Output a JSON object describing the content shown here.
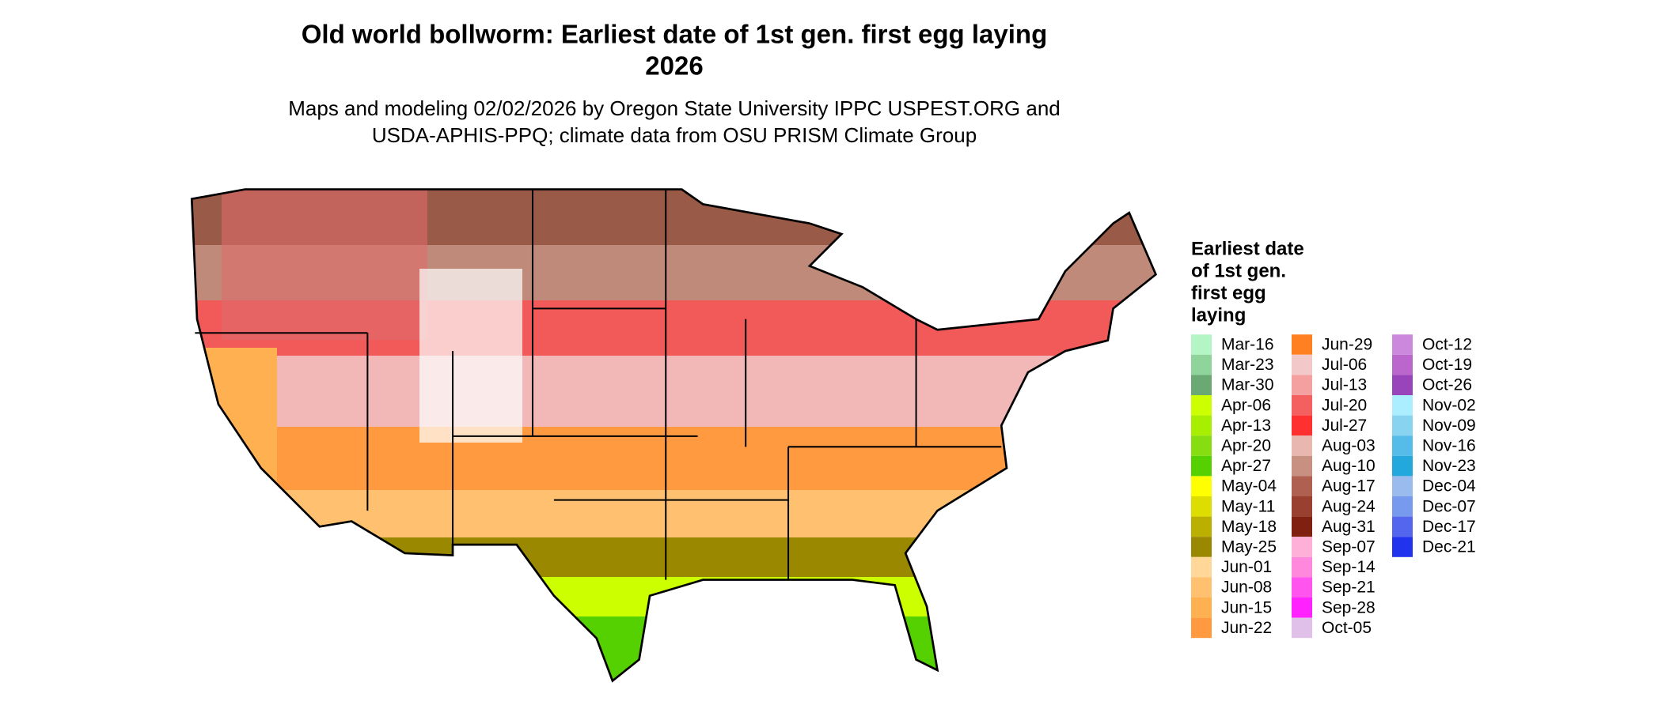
{
  "title": [
    "Old world bollworm: Earliest date of 1st gen. first egg laying",
    "2026"
  ],
  "subtitle": [
    "Maps and modeling 02/02/2026 by Oregon State University IPPC USPEST.ORG and",
    "USDA-APHIS-PPQ; climate data from OSU PRISM Climate Group"
  ],
  "legend": {
    "title": [
      "Earliest date",
      "of 1st gen.",
      "first egg",
      "laying"
    ],
    "items": [
      {
        "label": "Mar-16",
        "color": "#b3f5c4"
      },
      {
        "label": "Mar-23",
        "color": "#8fd49a"
      },
      {
        "label": "Mar-30",
        "color": "#6aa874"
      },
      {
        "label": "Apr-06",
        "color": "#ccff00"
      },
      {
        "label": "Apr-13",
        "color": "#a8ee00"
      },
      {
        "label": "Apr-20",
        "color": "#86de10"
      },
      {
        "label": "Apr-27",
        "color": "#55d000"
      },
      {
        "label": "May-04",
        "color": "#ffff00"
      },
      {
        "label": "May-11",
        "color": "#dddd00"
      },
      {
        "label": "May-18",
        "color": "#bbb000"
      },
      {
        "label": "May-25",
        "color": "#998800"
      },
      {
        "label": "Jun-01",
        "color": "#ffd899"
      },
      {
        "label": "Jun-08",
        "color": "#ffc070"
      },
      {
        "label": "Jun-15",
        "color": "#ffb050"
      },
      {
        "label": "Jun-22",
        "color": "#ff9a40"
      },
      {
        "label": "Jun-29",
        "color": "#ff8020"
      },
      {
        "label": "Jul-06",
        "color": "#f2c8c8"
      },
      {
        "label": "Jul-13",
        "color": "#f4a0a0"
      },
      {
        "label": "Jul-20",
        "color": "#f46060"
      },
      {
        "label": "Jul-27",
        "color": "#ff3030"
      },
      {
        "label": "Aug-03",
        "color": "#e8b8b0"
      },
      {
        "label": "Aug-10",
        "color": "#c89080"
      },
      {
        "label": "Aug-17",
        "color": "#b06050"
      },
      {
        "label": "Aug-24",
        "color": "#9a4030"
      },
      {
        "label": "Aug-31",
        "color": "#802010"
      },
      {
        "label": "Sep-07",
        "color": "#ffb0d8"
      },
      {
        "label": "Sep-14",
        "color": "#ff88dd"
      },
      {
        "label": "Sep-21",
        "color": "#ff55ee"
      },
      {
        "label": "Sep-28",
        "color": "#ff22ff"
      },
      {
        "label": "Oct-05",
        "color": "#e0c0e8"
      },
      {
        "label": "Oct-12",
        "color": "#cc88dd"
      },
      {
        "label": "Oct-19",
        "color": "#bb66cc"
      },
      {
        "label": "Oct-26",
        "color": "#9944bb"
      },
      {
        "label": "Nov-02",
        "color": "#aaeeff"
      },
      {
        "label": "Nov-09",
        "color": "#88d4f0"
      },
      {
        "label": "Nov-16",
        "color": "#55bbe8"
      },
      {
        "label": "Nov-23",
        "color": "#22a8dd"
      },
      {
        "label": "Dec-04",
        "color": "#99bbee"
      },
      {
        "label": "Dec-07",
        "color": "#7799ee"
      },
      {
        "label": "Dec-17",
        "color": "#5566ee"
      },
      {
        "label": "Dec-21",
        "color": "#2233ee"
      }
    ]
  }
}
